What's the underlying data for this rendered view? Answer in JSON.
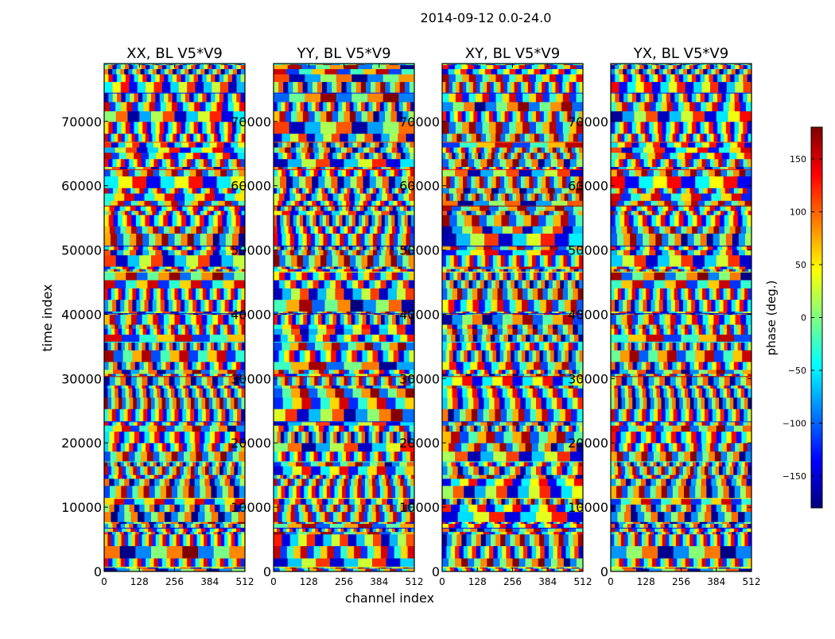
{
  "figure_title": "2014-09-12 0.0-24.0",
  "chart_data": {
    "type": "heatmap",
    "description_type": "phase waterfall",
    "title": "2014-09-12 0.0-24.0",
    "xlabel": "channel index",
    "ylabel": "time index",
    "xlim": [
      0,
      512
    ],
    "ylim": [
      0,
      79000
    ],
    "x_ticks": [
      0,
      128,
      256,
      384,
      512
    ],
    "y_ticks": [
      0,
      10000,
      20000,
      30000,
      40000,
      50000,
      60000,
      70000
    ],
    "panels": [
      {
        "title": "XX, BL V5*V9"
      },
      {
        "title": "YY, BL V5*V9"
      },
      {
        "title": "XY, BL V5*V9"
      },
      {
        "title": "YX, BL V5*V9"
      }
    ],
    "colorbar": {
      "label": "phase (deg.)",
      "range": [
        -180,
        180
      ],
      "ticks": [
        -150,
        -100,
        -50,
        0,
        50,
        100,
        150
      ],
      "colormap": "jet"
    },
    "colors": {
      "jet": [
        "#00007f",
        "#0000ff",
        "#007fff",
        "#00ffff",
        "#7fff7f",
        "#ffff00",
        "#ff7f00",
        "#ff0000",
        "#7f0000"
      ]
    }
  }
}
